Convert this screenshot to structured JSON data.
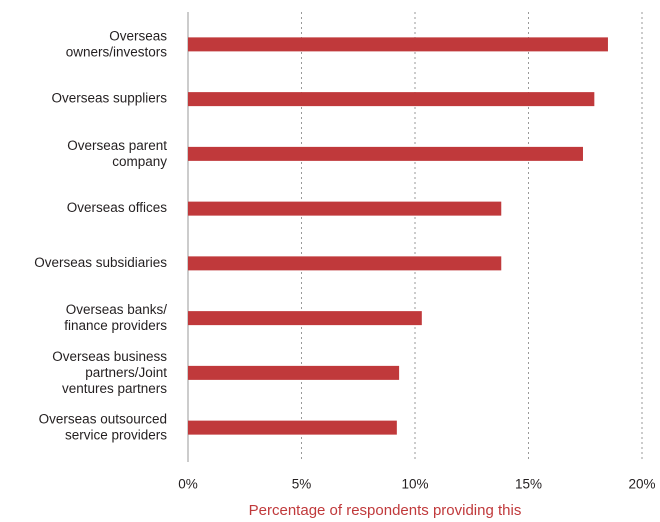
{
  "chart_data": {
    "type": "bar",
    "orientation": "horizontal",
    "categories": [
      "Overseas\nowners/investors",
      "Overseas suppliers",
      "Overseas parent\ncompany",
      "Overseas offices",
      "Overseas subsidiaries",
      "Overseas banks/\nfinance providers",
      "Overseas business\npartners/Joint\nventures partners",
      "Overseas outsourced\nservice providers"
    ],
    "values": [
      18.5,
      17.9,
      17.4,
      13.8,
      13.8,
      10.3,
      9.3,
      9.2
    ],
    "color": "#c0393b",
    "xlim": [
      0,
      20
    ],
    "xticks": [
      {
        "value": 0,
        "label": "0%"
      },
      {
        "value": 5,
        "label": "5%"
      },
      {
        "value": 10,
        "label": "10%"
      },
      {
        "value": 15,
        "label": "15%"
      },
      {
        "value": 20,
        "label": "20%"
      }
    ],
    "grid": true,
    "xlabel": "Percentage of respondents providing this"
  }
}
